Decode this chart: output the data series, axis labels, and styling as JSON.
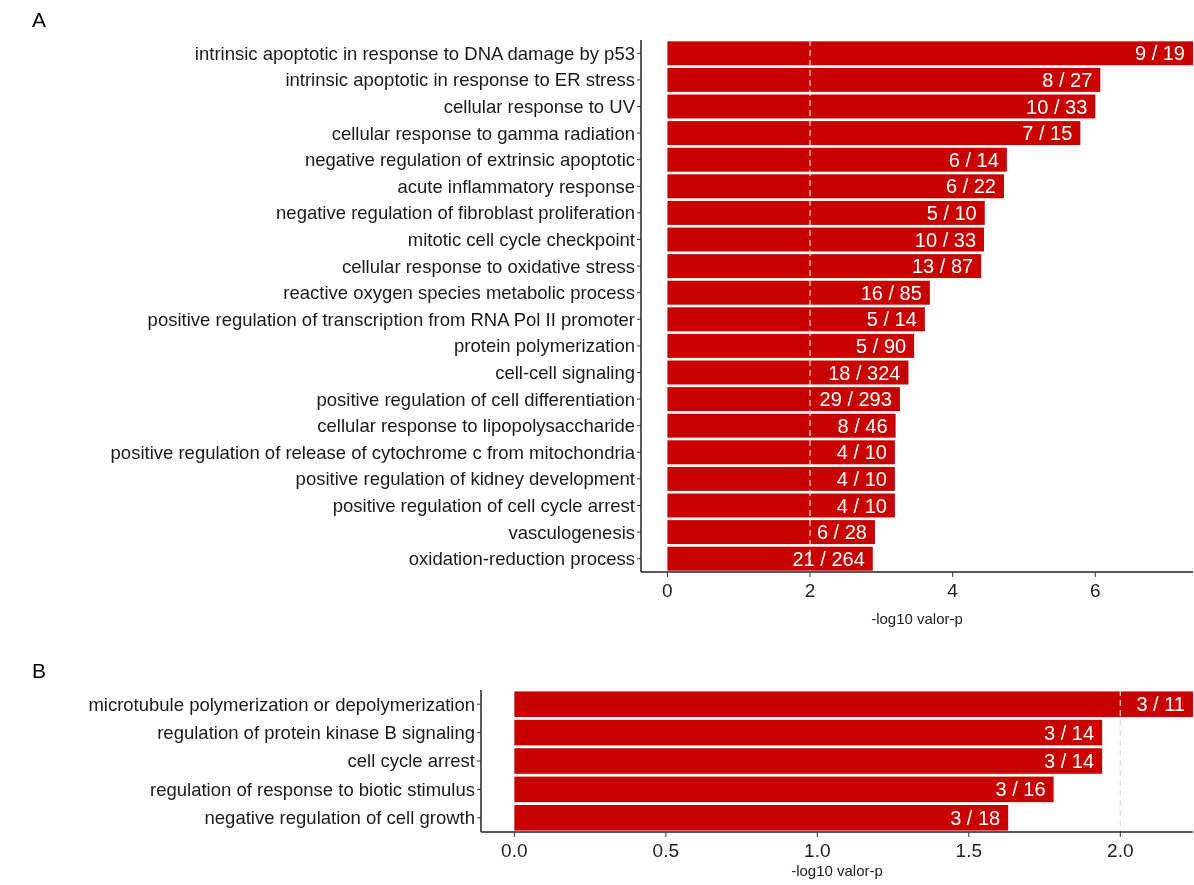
{
  "chart_data": [
    {
      "type": "bar",
      "title": "A",
      "orientation": "horizontal",
      "xlabel": "-log10 valor-p",
      "categories": [
        "intrinsic apoptotic in response to DNA damage by p53",
        "intrinsic apoptotic in response to ER stress",
        "cellular response to UV",
        "cellular response to gamma radiation",
        "negative regulation of extrinsic apoptotic",
        "acute inflammatory response",
        "negative regulation of fibroblast proliferation",
        "mitotic cell cycle checkpoint",
        "cellular response to oxidative stress",
        "reactive oxygen species metabolic process",
        "positive regulation of transcription from RNA Pol II promoter",
        "protein polymerization",
        "cell-cell signaling",
        "positive regulation of cell differentiation",
        "cellular response to lipopolysaccharide",
        "positive regulation of release of cytochrome c from mitochondria",
        "positive regulation of kidney development",
        "positive regulation of cell cycle arrest",
        "vasculogenesis",
        "oxidation-reduction process"
      ],
      "values": [
        7.37,
        6.07,
        6.0,
        5.79,
        4.76,
        4.72,
        4.45,
        4.44,
        4.4,
        3.68,
        3.61,
        3.46,
        3.38,
        3.26,
        3.2,
        3.19,
        3.19,
        3.19,
        2.91,
        2.88
      ],
      "annotations": [
        {
          "text": "9 / 19",
          "x": 7.37,
          "y": "intrinsic apoptotic in response to DNA damage by p53"
        },
        {
          "text": "8 / 27",
          "x": 6.07,
          "y": "intrinsic apoptotic in response to ER stress"
        },
        {
          "text": "10 / 33",
          "x": 6.0,
          "y": "cellular response to UV"
        },
        {
          "text": "7 / 15",
          "x": 5.79,
          "y": "cellular response to gamma radiation"
        },
        {
          "text": "6 / 14",
          "x": 4.76,
          "y": "negative regulation of extrinsic apoptotic"
        },
        {
          "text": "6 / 22",
          "x": 4.72,
          "y": "acute inflammatory response"
        },
        {
          "text": "5 / 10",
          "x": 4.45,
          "y": "negative regulation of fibroblast proliferation"
        },
        {
          "text": "10 / 33",
          "x": 4.44,
          "y": "mitotic cell cycle checkpoint"
        },
        {
          "text": "13 / 87",
          "x": 4.4,
          "y": "cellular response to oxidative stress"
        },
        {
          "text": "16 / 85",
          "x": 3.68,
          "y": "reactive oxygen species metabolic process"
        },
        {
          "text": "5 / 14",
          "x": 3.61,
          "y": "positive regulation of transcription from RNA Pol II promoter"
        },
        {
          "text": "5 / 90",
          "x": 3.46,
          "y": "protein polymerization"
        },
        {
          "text": "18 / 324",
          "x": 3.38,
          "y": "cell-cell signaling"
        },
        {
          "text": "29 / 293",
          "x": 3.26,
          "y": "positive regulation of cell differentiation"
        },
        {
          "text": "8 / 46",
          "x": 3.2,
          "y": "cellular response to lipopolysaccharide"
        },
        {
          "text": "4 / 10",
          "x": 3.19,
          "y": "positive regulation of release of cytochrome c from mitochondria"
        },
        {
          "text": "4 / 10",
          "x": 3.19,
          "y": "positive regulation of kidney development"
        },
        {
          "text": "4 / 10",
          "x": 3.19,
          "y": "positive regulation of cell cycle arrest"
        },
        {
          "text": "6 / 28",
          "x": 2.91,
          "y": "vasculogenesis"
        },
        {
          "text": "21 / 264",
          "x": 2.88,
          "y": "oxidation-reduction process"
        }
      ],
      "color": "#c80000",
      "xlim": [
        -0.37,
        7.37
      ],
      "xticks": [
        0,
        2,
        4,
        6
      ],
      "grid": false,
      "ref_lines": [
        {
          "axis": "x",
          "value": 2,
          "color": "#dddddd",
          "line_style": "dashed"
        }
      ]
    },
    {
      "type": "bar",
      "title": "B",
      "orientation": "horizontal",
      "xlabel": "-log10 valor-p",
      "categories": [
        "microtubule polymerization or depolymerization",
        "regulation of protein kinase B signaling",
        "cell cycle arrest",
        "regulation of response to biotic stimulus",
        "negative regulation of cell growth"
      ],
      "values": [
        2.24,
        1.94,
        1.94,
        1.78,
        1.63
      ],
      "annotations": [
        {
          "text": "3 / 11",
          "x": 2.24,
          "y": "microtubule polymerization or depolymerization"
        },
        {
          "text": "3 / 14",
          "x": 1.94,
          "y": "regulation of protein kinase B signaling"
        },
        {
          "text": "3 / 14",
          "x": 1.94,
          "y": "cell cycle arrest"
        },
        {
          "text": "3 / 16",
          "x": 1.78,
          "y": "regulation of response to biotic stimulus"
        },
        {
          "text": "3 / 18",
          "x": 1.63,
          "y": "negative regulation of cell growth"
        }
      ],
      "color": "#c80000",
      "xlim": [
        -0.11,
        2.24
      ],
      "xticks": [
        {
          "value": 0,
          "label": "0.0"
        },
        {
          "value": 0.5,
          "label": "0.5"
        },
        {
          "value": 1,
          "label": "1.0"
        },
        {
          "value": 1.5,
          "label": "1.5"
        },
        {
          "value": 2,
          "label": "2.0"
        }
      ],
      "grid": false,
      "ref_lines": [
        {
          "axis": "x",
          "value": 2,
          "color": "#dddddd",
          "line_style": "dashed"
        }
      ]
    }
  ]
}
